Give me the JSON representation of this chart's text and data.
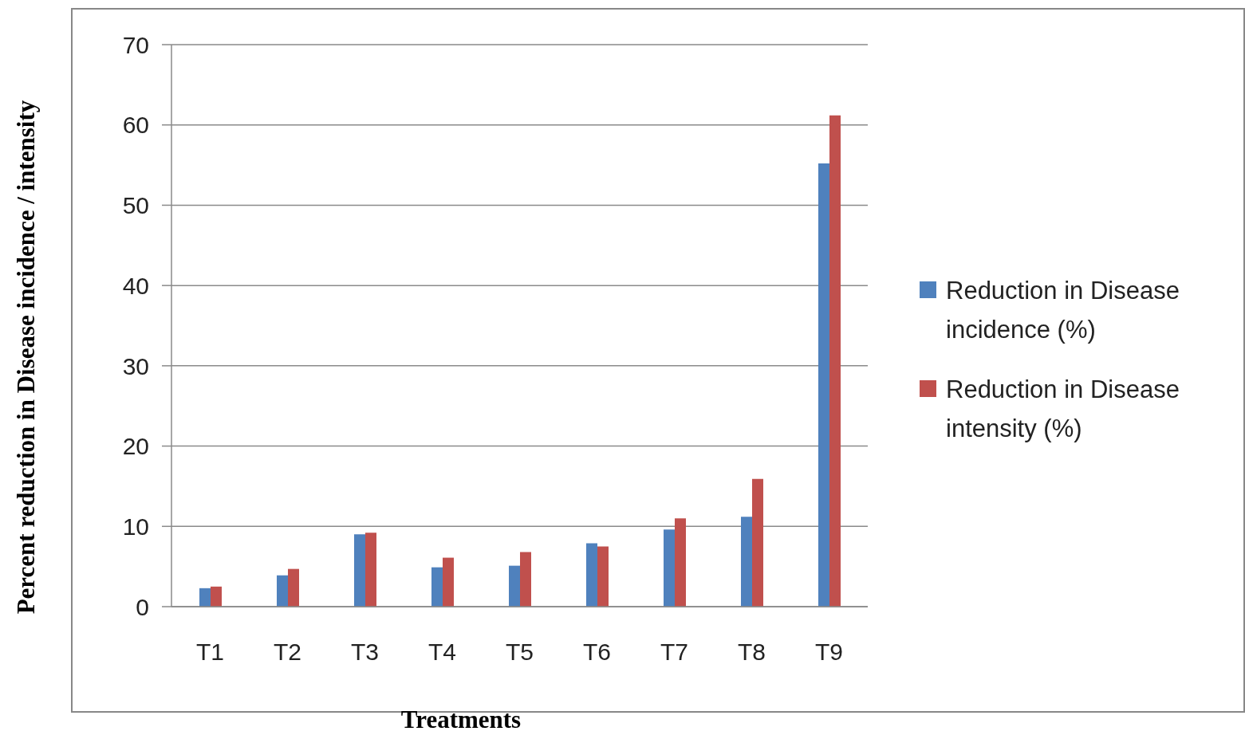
{
  "chart_data": {
    "type": "bar",
    "xlabel": "Treatments",
    "ylabel": "Percent reduction in Disease incidence / intensity",
    "categories": [
      "T1",
      "T2",
      "T3",
      "T4",
      "T5",
      "T6",
      "T7",
      "T8",
      "T9"
    ],
    "series": [
      {
        "name": "Reduction in Disease incidence (%)",
        "color": "#4f81bd",
        "values": [
          2.3,
          3.9,
          9.0,
          4.9,
          5.1,
          7.9,
          9.6,
          11.2,
          55.2
        ]
      },
      {
        "name": "Reduction in Disease intensity (%)",
        "color": "#c0504d",
        "values": [
          2.5,
          4.7,
          9.2,
          6.1,
          6.8,
          7.5,
          11.0,
          15.9,
          61.2
        ]
      }
    ],
    "ylim": [
      0,
      70
    ],
    "yticks": [
      0,
      10,
      20,
      30,
      40,
      50,
      60,
      70
    ],
    "grid": "y",
    "legend": "right"
  }
}
